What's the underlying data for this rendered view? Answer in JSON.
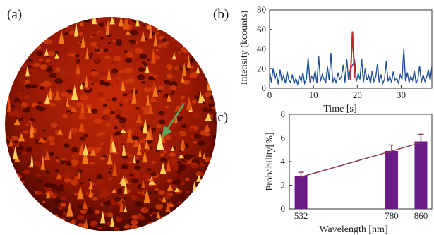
{
  "panels": {
    "a": {
      "label": "(a)"
    },
    "b": {
      "label": "(b)"
    },
    "c": {
      "label": "(c)"
    }
  },
  "colors": {
    "surface_dark": "#3a0500",
    "surface_mid": "#a81d05",
    "surface_bright": "#e85a10",
    "surface_peak": "#ffd24a",
    "trace_blue": "#1f4e9a",
    "burst_red": "#c0282a",
    "bar_purple": "#6a1b86",
    "fit_line": "#8b3a4e",
    "arrow_green": "#5aa860"
  },
  "chart_data": [
    {
      "type": "surface",
      "panel": "(a)",
      "description_source": "3D intensity map with an arrow marking a bright peak"
    },
    {
      "type": "line",
      "panel": "(b)",
      "xlabel": "Time [s]",
      "ylabel": "Intensity (kcounts)",
      "xlim": [
        0,
        37
      ],
      "ylim": [
        0,
        80
      ],
      "xticks": [
        0,
        10,
        20,
        30
      ],
      "yticks": [
        0,
        20,
        40,
        60,
        80
      ],
      "series": [
        {
          "color": "#1f4e9a",
          "x": [
            0,
            0.4,
            0.8,
            1.2,
            1.6,
            2.0,
            2.4,
            2.8,
            3.2,
            3.6,
            4.0,
            4.4,
            4.8,
            5.2,
            5.6,
            6.0,
            6.4,
            6.8,
            7.2,
            7.6,
            8.0,
            8.4,
            8.8,
            9.2,
            9.6,
            10.0,
            10.4,
            10.8,
            11.2,
            11.6,
            12.0,
            12.4,
            12.8,
            13.2,
            13.6,
            14.0,
            14.4,
            14.8,
            15.2,
            15.6,
            16.0,
            16.4,
            16.8,
            17.2,
            17.6,
            18.0,
            18.4,
            19.4,
            19.8,
            20.2,
            20.6,
            21.0,
            21.4,
            21.8,
            22.2,
            22.6,
            23.0,
            23.4,
            23.8,
            24.2,
            24.6,
            25.0,
            25.4,
            25.8,
            26.2,
            26.6,
            27.0,
            27.4,
            27.8,
            28.2,
            28.6,
            29.0,
            29.4,
            29.8,
            30.2,
            30.6,
            31.0,
            31.4,
            31.8,
            32.2,
            32.6,
            33.0,
            33.4,
            33.8,
            34.2,
            34.6,
            35.0,
            35.4,
            35.8,
            36.2,
            36.6,
            37.0
          ],
          "y": [
            18,
            6,
            20,
            9,
            15,
            4,
            19,
            7,
            13,
            5,
            17,
            8,
            6,
            14,
            5,
            10,
            4,
            12,
            7,
            16,
            5,
            9,
            31,
            6,
            12,
            8,
            18,
            5,
            33,
            7,
            14,
            9,
            6,
            22,
            8,
            36,
            6,
            11,
            5,
            16,
            9,
            12,
            24,
            6,
            30,
            8,
            19,
            28,
            7,
            15,
            9,
            30,
            6,
            20,
            8,
            13,
            5,
            18,
            7,
            11,
            25,
            6,
            14,
            5,
            9,
            28,
            7,
            12,
            6,
            17,
            8,
            10,
            5,
            14,
            9,
            40,
            7,
            16,
            6,
            12,
            8,
            18,
            5,
            9,
            23,
            6,
            14,
            7,
            11,
            19,
            8,
            22
          ]
        },
        {
          "color": "#c0282a",
          "x": [
            18.4,
            18.9,
            19.4
          ],
          "y": [
            8,
            58,
            10
          ]
        }
      ]
    },
    {
      "type": "bar",
      "panel": "(c)",
      "xlabel": "Wavelength [nm]",
      "ylabel": "Probability[%]",
      "ylim": [
        0,
        8
      ],
      "xlim": [
        500,
        890
      ],
      "yticks": [
        0,
        2,
        4,
        6,
        8
      ],
      "categories": [
        "532",
        "780",
        "860"
      ],
      "x": [
        532,
        780,
        860
      ],
      "values": [
        2.8,
        4.9,
        5.7
      ],
      "errors": [
        0.3,
        0.5,
        0.6
      ],
      "fit_line": {
        "x": [
          532,
          860
        ],
        "y": [
          2.7,
          5.6
        ]
      }
    }
  ]
}
